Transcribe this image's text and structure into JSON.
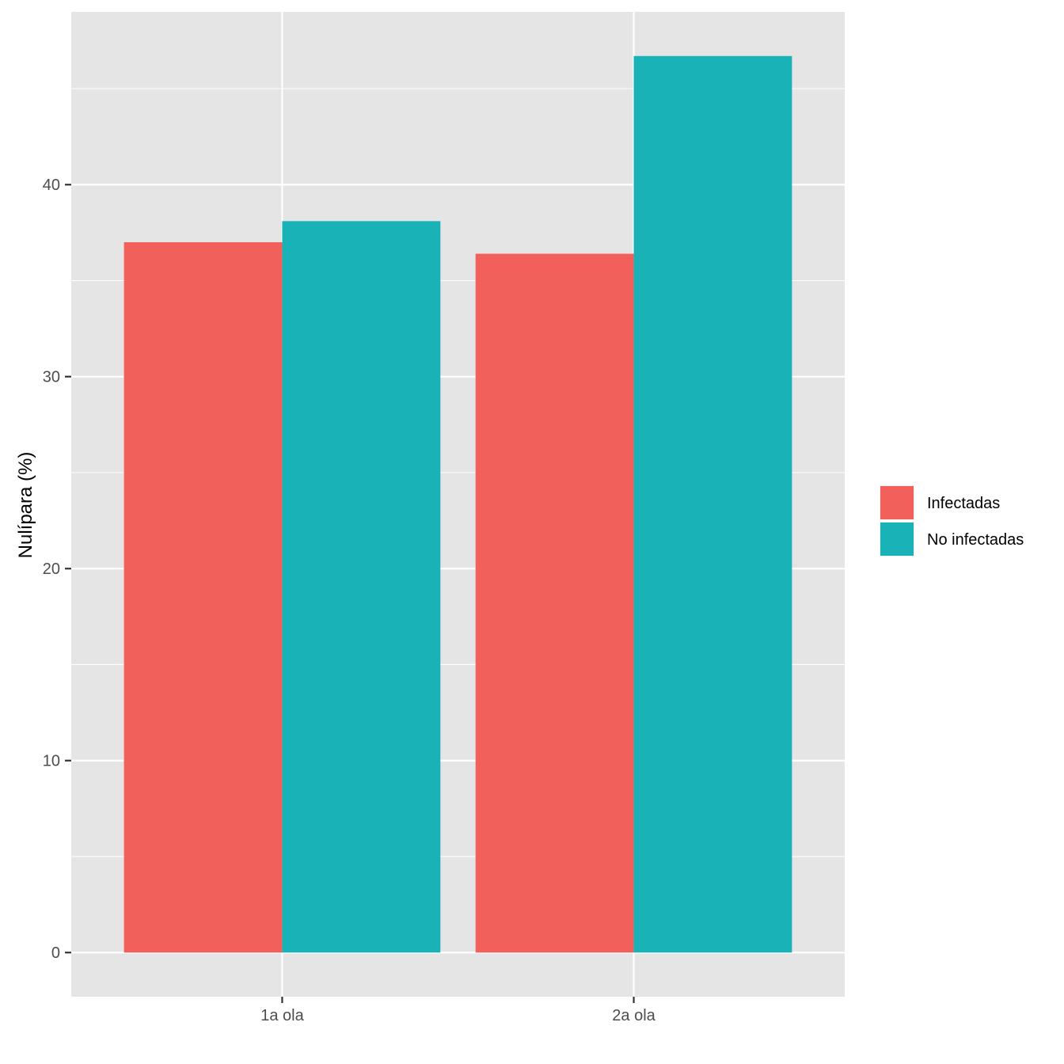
{
  "chart_data": {
    "type": "bar",
    "categories": [
      "1a ola",
      "2a ola"
    ],
    "series": [
      {
        "name": "Infectadas",
        "values": [
          37.0,
          36.4
        ],
        "color": "#F2605C"
      },
      {
        "name": "No infectadas",
        "values": [
          38.1,
          46.7
        ],
        "color": "#19B3B7"
      }
    ],
    "xlabel": "",
    "ylabel": "Nulípara (%)",
    "ylim": [
      -2.3,
      49.0
    ],
    "yticks": [
      0,
      10,
      20,
      30,
      40
    ],
    "grid": true,
    "legend_position": "right",
    "panel_background": "#E5E5E5",
    "grid_color": "#FFFFFF"
  }
}
